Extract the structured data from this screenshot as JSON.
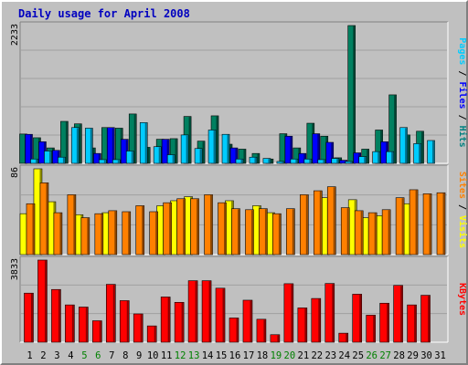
{
  "chart_data": {
    "type": "bar",
    "title": "Daily usage for April 2008",
    "categories": [
      "1",
      "2",
      "3",
      "4",
      "5",
      "6",
      "7",
      "8",
      "9",
      "10",
      "11",
      "12",
      "13",
      "14",
      "15",
      "16",
      "17",
      "18",
      "19",
      "20",
      "21",
      "22",
      "23",
      "24",
      "25",
      "26",
      "27",
      "28",
      "29",
      "30",
      "31"
    ],
    "weekend_days": [
      "5",
      "6",
      "12",
      "13",
      "19",
      "20",
      "26",
      "27"
    ],
    "panels": [
      {
        "name": "pages-files-hits",
        "ymax": 2233,
        "ymax_label": "2233",
        "ylabel_parts": [
          {
            "text": "Pages",
            "color": "#00ccff"
          },
          {
            "text": " / ",
            "color": "#000000"
          },
          {
            "text": "Files",
            "color": "#0000ff"
          },
          {
            "text": " / ",
            "color": "#000000"
          },
          {
            "text": "Hits",
            "color": "#008080"
          }
        ],
        "series": [
          {
            "name": "Hits",
            "color": "#008060",
            "values": [
              475,
              415,
              250,
              680,
              640,
              250,
              580,
              570,
              800,
              260,
              390,
              400,
              760,
              360,
              770,
              310,
              230,
              160,
              70,
              480,
              250,
              650,
              440,
              90,
              2233,
              230,
              540,
              1110,
              460,
              520,
              0
            ]
          },
          {
            "name": "Files",
            "color": "#0000ff",
            "values": [
              470,
              350,
              210,
              0,
              0,
              160,
              580,
              390,
              0,
              0,
              390,
              0,
              0,
              0,
              0,
              250,
              0,
              0,
              0,
              440,
              160,
              480,
              340,
              50,
              170,
              0,
              350,
              0,
              0,
              0,
              0
            ]
          },
          {
            "name": "Pages",
            "color": "#00ccff",
            "values": [
              70,
              200,
              100,
              580,
              570,
              60,
              60,
              200,
              660,
              270,
              140,
              460,
              240,
              540,
              470,
              70,
              100,
              80,
              30,
              70,
              70,
              60,
              80,
              30,
              110,
              190,
              190,
              580,
              320,
              370,
              0
            ]
          }
        ]
      },
      {
        "name": "sites-visits",
        "ymax": 86,
        "ymax_label": "86",
        "ylabel_parts": [
          {
            "text": "Sites",
            "color": "#ff8000"
          },
          {
            "text": " / ",
            "color": "#000000"
          },
          {
            "text": "Visits",
            "color": "#ffff00"
          }
        ],
        "series": [
          {
            "name": "Visits",
            "color": "#ffff00",
            "values": [
              41,
              86,
              53,
              0,
              40,
              0,
              42,
              0,
              0,
              0,
              49,
              54,
              58,
              0,
              0,
              54,
              0,
              49,
              42,
              0,
              0,
              0,
              57,
              0,
              55,
              37,
              39,
              0,
              51,
              0,
              0
            ]
          },
          {
            "name": "Sites",
            "color": "#ff8000",
            "values": [
              51,
              72,
              42,
              60,
              37,
              41,
              44,
              43,
              49,
              43,
              52,
              56,
              56,
              60,
              52,
              46,
              45,
              46,
              41,
              46,
              60,
              64,
              68,
              47,
              44,
              42,
              45,
              57,
              65,
              61,
              62
            ]
          }
        ]
      },
      {
        "name": "kbytes",
        "ymax": 3833,
        "ymax_label": "3833",
        "ylabel_parts": [
          {
            "text": "KBytes",
            "color": "#ff0000"
          }
        ],
        "series": [
          {
            "name": "KBytes",
            "color": "#ff0000",
            "values": [
              2290,
              3833,
              2460,
              1740,
              1640,
              1000,
              2700,
              1940,
              1320,
              760,
              2110,
              1860,
              2870,
              2870,
              2520,
              1130,
              1960,
              1070,
              350,
              2730,
              1600,
              2040,
              2740,
              420,
              2240,
              1260,
              1820,
              2650,
              1740,
              2190,
              0
            ]
          }
        ]
      }
    ]
  }
}
